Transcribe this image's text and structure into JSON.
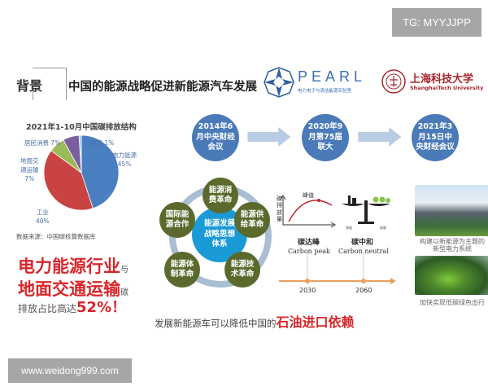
{
  "watermarks": {
    "top": "TG: MYYJJPP",
    "bottom": "www.weidong999.com"
  },
  "header": {
    "section": "背景",
    "title": "中国的能源战略促进新能源汽车发展",
    "logo_pearl": "PEARL",
    "logo_pearl_sub": "电力电子与清洁能源实验室",
    "logo_university": "上海科技大学",
    "logo_university_en": "ShanghaiTech University"
  },
  "chart_data": {
    "type": "pie",
    "title": "2021年1-10月中国碳排放结构",
    "categories": [
      "电力能源",
      "工业",
      "地面交通运输",
      "居民消费",
      "航空"
    ],
    "values": [
      45,
      40,
      7,
      7,
      1
    ],
    "labels": [
      "电力能源 45%",
      "工业 40%",
      "地面交通运输 7%",
      "居民消费 7%",
      "航空 1%"
    ],
    "colors": [
      "#4a7fc1",
      "#c94343",
      "#9bbb59",
      "#7a5fa0",
      "#9dc3e6"
    ],
    "source": "数据来源：中国碳核算数据库"
  },
  "pie_labels": {
    "power": "电力能源",
    "power_pct": "45%",
    "industry": "工业",
    "industry_pct": "40%",
    "transport_1": "地面交",
    "transport_2": "通运输",
    "transport_pct": "7%",
    "resident": "居民消费 7%",
    "aviation": "航空 1%"
  },
  "highlight": {
    "line1": "电力能源行业",
    "conj1": "与",
    "line2": "地面交通运输",
    "conj2": "碳",
    "line3": "排放占比高达",
    "pct": "52%！"
  },
  "timeline": [
    {
      "l1": "2014年6",
      "l2": "月中央财经",
      "l3": "会议"
    },
    {
      "l1": "2020年9",
      "l2": "月第75届",
      "l3": "联大"
    },
    {
      "l1": "2021年3",
      "l2": "月15日中",
      "l3": "央财经会议"
    }
  ],
  "strategy": {
    "center": [
      "能源发展",
      "战略思想",
      "体系"
    ],
    "nodes": [
      [
        "能源消",
        "费革命"
      ],
      [
        "能源供",
        "给革命"
      ],
      [
        "能源技",
        "术革命"
      ],
      [
        "能源体",
        "制革命"
      ],
      [
        "国际能",
        "源合作"
      ]
    ]
  },
  "carbon": {
    "ylabel": [
      "碳",
      "排",
      "放",
      "量"
    ],
    "peak_label": "峰值",
    "peak_cn": "碳达峰",
    "peak_en": "Carbon peak",
    "neutral_cn": "碳中和",
    "neutral_en": "Carbon neutral",
    "emit": "排放",
    "absorb": "吸收",
    "years": [
      "2030",
      "2060"
    ]
  },
  "photos": {
    "cap1_l1": "构建以新能源为主题的",
    "cap1_l2": "新型电力系统",
    "cap2": "加快实现低碳绿色出行"
  },
  "bottom": {
    "text": "发展新能源车可以降低中国的",
    "emph": "石油进口依赖"
  }
}
